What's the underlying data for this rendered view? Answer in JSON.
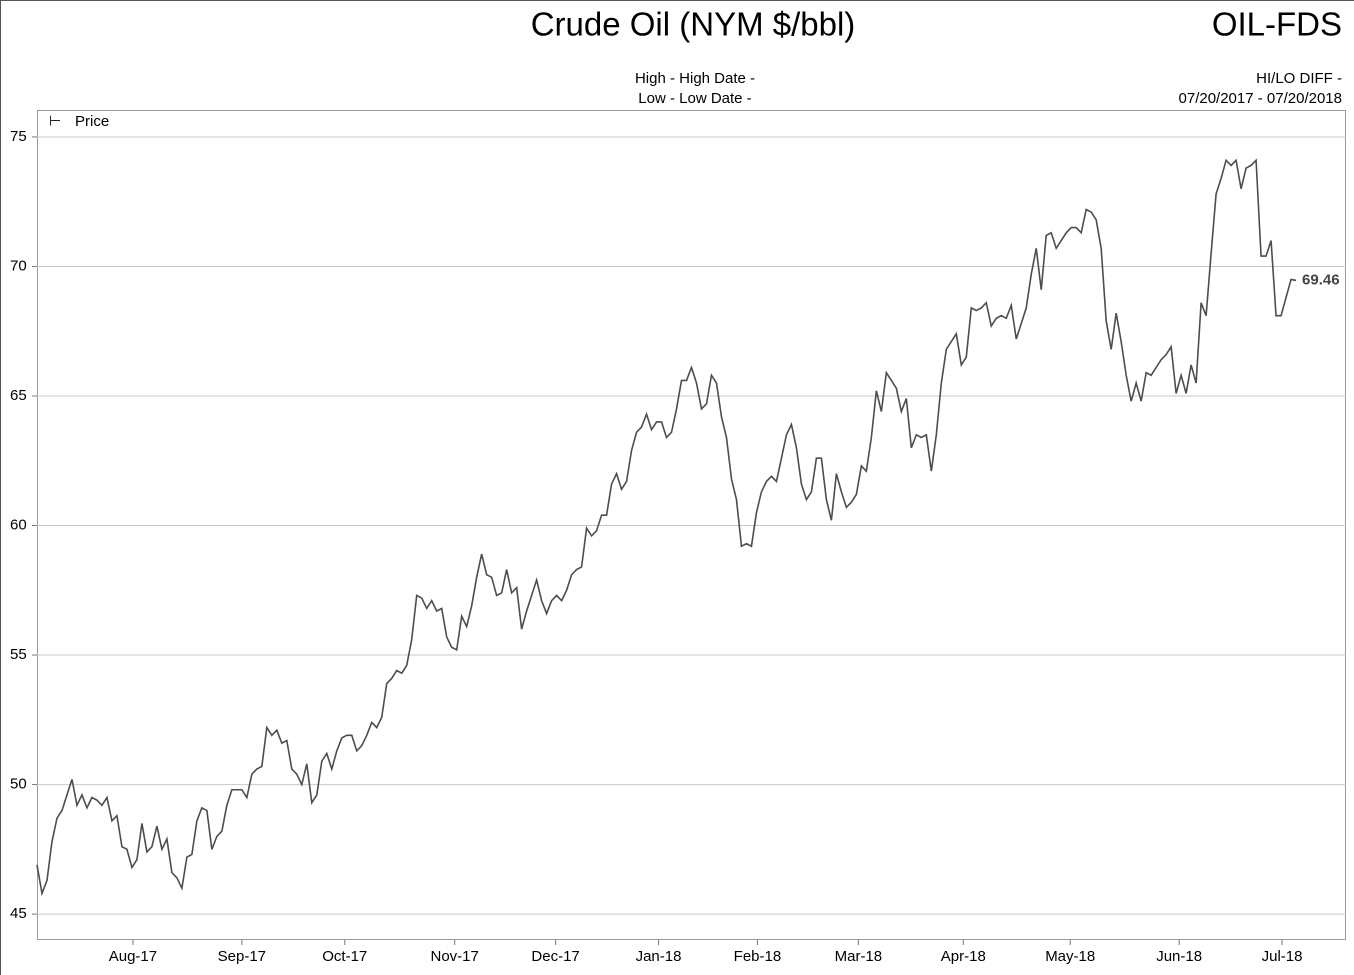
{
  "chart_data": {
    "type": "line",
    "title": "Crude Oil (NYM $/bbl)",
    "symbol": "OIL-FDS",
    "header_left": [
      "High - High Date -",
      "Low - Low Date -"
    ],
    "header_right": [
      "HI/LO DIFF -",
      "07/20/2017 - 07/20/2018"
    ],
    "legend_marker": "⊢",
    "series": [
      {
        "name": "Price",
        "color": "#4d4d4f",
        "values": [
          46.9,
          45.8,
          46.3,
          47.8,
          48.7,
          49.0,
          49.6,
          50.2,
          49.2,
          49.6,
          49.1,
          49.5,
          49.4,
          49.2,
          49.5,
          48.6,
          48.8,
          47.6,
          47.5,
          46.8,
          47.1,
          48.5,
          47.4,
          47.6,
          48.4,
          47.5,
          47.9,
          46.6,
          46.4,
          46.0,
          47.2,
          47.3,
          48.6,
          49.1,
          49.0,
          47.5,
          48.0,
          48.2,
          49.2,
          49.8,
          49.8,
          49.8,
          49.5,
          50.4,
          50.6,
          50.7,
          52.2,
          51.9,
          52.1,
          51.6,
          51.7,
          50.6,
          50.4,
          50.0,
          50.8,
          49.3,
          49.6,
          50.9,
          51.2,
          50.6,
          51.3,
          51.8,
          51.9,
          51.9,
          51.3,
          51.5,
          51.9,
          52.4,
          52.2,
          52.6,
          53.9,
          54.1,
          54.4,
          54.3,
          54.6,
          55.6,
          57.3,
          57.2,
          56.8,
          57.1,
          56.7,
          56.8,
          55.7,
          55.3,
          55.2,
          56.5,
          56.1,
          56.9,
          58.0,
          58.9,
          58.1,
          58.0,
          57.3,
          57.4,
          58.3,
          57.4,
          57.6,
          56.0,
          56.7,
          57.3,
          57.9,
          57.1,
          56.6,
          57.1,
          57.3,
          57.1,
          57.5,
          58.1,
          58.3,
          58.4,
          59.9,
          59.6,
          59.8,
          60.4,
          60.4,
          61.6,
          62.0,
          61.4,
          61.7,
          62.9,
          63.6,
          63.8,
          64.3,
          63.7,
          64.0,
          64.0,
          63.4,
          63.6,
          64.5,
          65.6,
          65.6,
          66.1,
          65.5,
          64.5,
          64.7,
          65.8,
          65.5,
          64.2,
          63.4,
          61.8,
          61.0,
          59.2,
          59.3,
          59.2,
          60.5,
          61.3,
          61.7,
          61.9,
          61.7,
          62.6,
          63.5,
          63.9,
          63.0,
          61.6,
          61.0,
          61.3,
          62.6,
          62.6,
          61.0,
          60.2,
          62.0,
          61.3,
          60.7,
          60.9,
          61.2,
          62.3,
          62.1,
          63.4,
          65.2,
          64.4,
          65.9,
          65.6,
          65.3,
          64.4,
          64.9,
          63.0,
          63.5,
          63.4,
          63.5,
          62.1,
          63.5,
          65.5,
          66.8,
          67.1,
          67.4,
          66.2,
          66.5,
          68.4,
          68.3,
          68.4,
          68.6,
          67.7,
          68.0,
          68.1,
          68.0,
          68.5,
          67.2,
          67.8,
          68.4,
          69.7,
          70.7,
          69.1,
          71.2,
          71.3,
          70.7,
          71.0,
          71.3,
          71.5,
          71.5,
          71.3,
          72.2,
          72.1,
          71.8,
          70.7,
          67.9,
          66.8,
          68.2,
          67.1,
          65.8,
          64.8,
          65.5,
          64.8,
          65.9,
          65.8,
          66.1,
          66.4,
          66.6,
          66.9,
          65.1,
          65.8,
          65.1,
          66.2,
          65.5,
          68.6,
          68.1,
          70.5,
          72.8,
          73.4,
          74.1,
          73.9,
          74.1,
          73.0,
          73.8,
          73.9,
          74.1,
          70.4,
          70.4,
          71.0,
          68.1,
          68.1,
          68.8,
          69.5,
          69.46
        ]
      }
    ],
    "xlim": [
      0,
      262
    ],
    "xticks": [
      {
        "value": 19.2,
        "label": "Aug-17"
      },
      {
        "value": 41,
        "label": "Sep-17"
      },
      {
        "value": 61.6,
        "label": "Oct-17"
      },
      {
        "value": 83.6,
        "label": "Nov-17"
      },
      {
        "value": 103.8,
        "label": "Dec-17"
      },
      {
        "value": 124.4,
        "label": "Jan-18"
      },
      {
        "value": 144.2,
        "label": "Feb-18"
      },
      {
        "value": 164.4,
        "label": "Mar-18"
      },
      {
        "value": 185.4,
        "label": "Apr-18"
      },
      {
        "value": 206.8,
        "label": "May-18"
      },
      {
        "value": 228.6,
        "label": "Jun-18"
      },
      {
        "value": 249.2,
        "label": "Jul-18"
      }
    ],
    "ylim": [
      44,
      76.04
    ],
    "yticks": [
      45,
      50,
      55,
      60,
      65,
      70,
      75
    ],
    "grid": true,
    "legend": "top-left"
  }
}
